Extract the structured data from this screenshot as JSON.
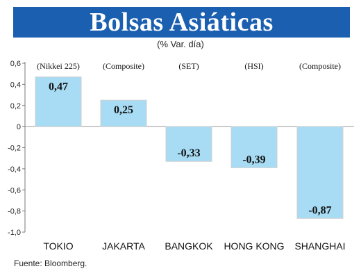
{
  "title": "Bolsas Asiáticas",
  "subtitle": "(% Var. día)",
  "source": "Fuente: Bloomberg.",
  "colors": {
    "title_bg": "#1b5fb0",
    "bar_fill": "#a8dcf4",
    "bar_stroke": "#cfcfcf",
    "axis": "#777777"
  },
  "chart_data": {
    "type": "bar",
    "categories": [
      "TOKIO",
      "JAKARTA",
      "BANGKOK",
      "HONG KONG",
      "SHANGHAI"
    ],
    "index_names": [
      "(Nikkei 225)",
      "(Composite)",
      "(SET)",
      "(HSI)",
      "(Composite)"
    ],
    "values": [
      0.47,
      0.25,
      -0.33,
      -0.39,
      -0.87
    ],
    "value_labels": [
      "0,47",
      "0,25",
      "-0,33",
      "-0,39",
      "-0,87"
    ],
    "ylim": [
      -1.0,
      0.6
    ],
    "yticks": [
      0.6,
      0.4,
      0.2,
      0,
      -0.2,
      -0.4,
      -0.6,
      -0.8,
      -1.0
    ],
    "ytick_labels": [
      "0,6",
      "0,4",
      "0,2",
      "0",
      "-0,2",
      "-0,4",
      "-0,6",
      "-0,8",
      "-1,0"
    ],
    "grid": false,
    "xlabel": "",
    "ylabel": ""
  }
}
